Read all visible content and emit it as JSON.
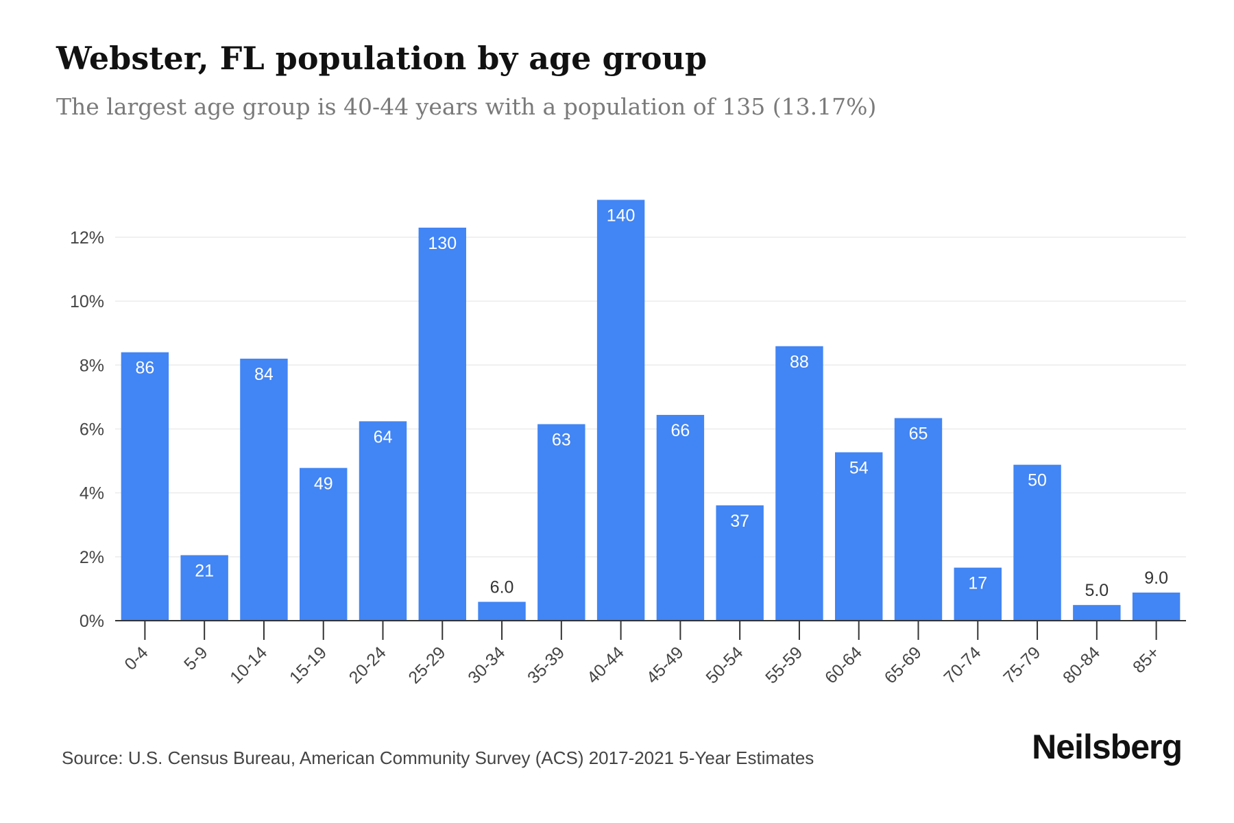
{
  "title": "Webster, FL population by age group",
  "subtitle": "The largest age group is 40-44 years with a population of 135 (13.17%)",
  "source": "Source: U.S. Census Bureau, American Community Survey (ACS) 2017-2021 5-Year Estimates",
  "logo": "Neilsberg",
  "colors": {
    "bar": "#4285f4",
    "grid": "#ebebeb",
    "axis": "#333333",
    "label_inside": "#ffffff",
    "label_outside": "#333333"
  },
  "chart_data": {
    "type": "bar",
    "categories": [
      "0-4",
      "5-9",
      "10-14",
      "15-19",
      "20-24",
      "25-29",
      "30-34",
      "35-39",
      "40-44",
      "45-49",
      "50-54",
      "55-59",
      "60-64",
      "65-69",
      "70-74",
      "75-79",
      "80-84",
      "85+"
    ],
    "values": [
      8.4,
      2.05,
      8.2,
      4.78,
      6.24,
      12.3,
      0.59,
      6.15,
      13.17,
      6.44,
      3.61,
      8.59,
      5.27,
      6.34,
      1.66,
      4.88,
      0.49,
      0.88
    ],
    "data_labels": [
      "86",
      "21",
      "84",
      "49",
      "64",
      "130",
      "6.0",
      "63",
      "140",
      "66",
      "37",
      "88",
      "54",
      "65",
      "17",
      "50",
      "5.0",
      "9.0"
    ],
    "y_ticks": [
      0,
      2,
      4,
      6,
      8,
      10,
      12
    ],
    "y_tick_labels": [
      "0%",
      "2%",
      "4%",
      "6%",
      "8%",
      "10%",
      "12%"
    ],
    "ylim": [
      0,
      13.2
    ],
    "xlabel": "",
    "ylabel": "",
    "grid": true
  }
}
